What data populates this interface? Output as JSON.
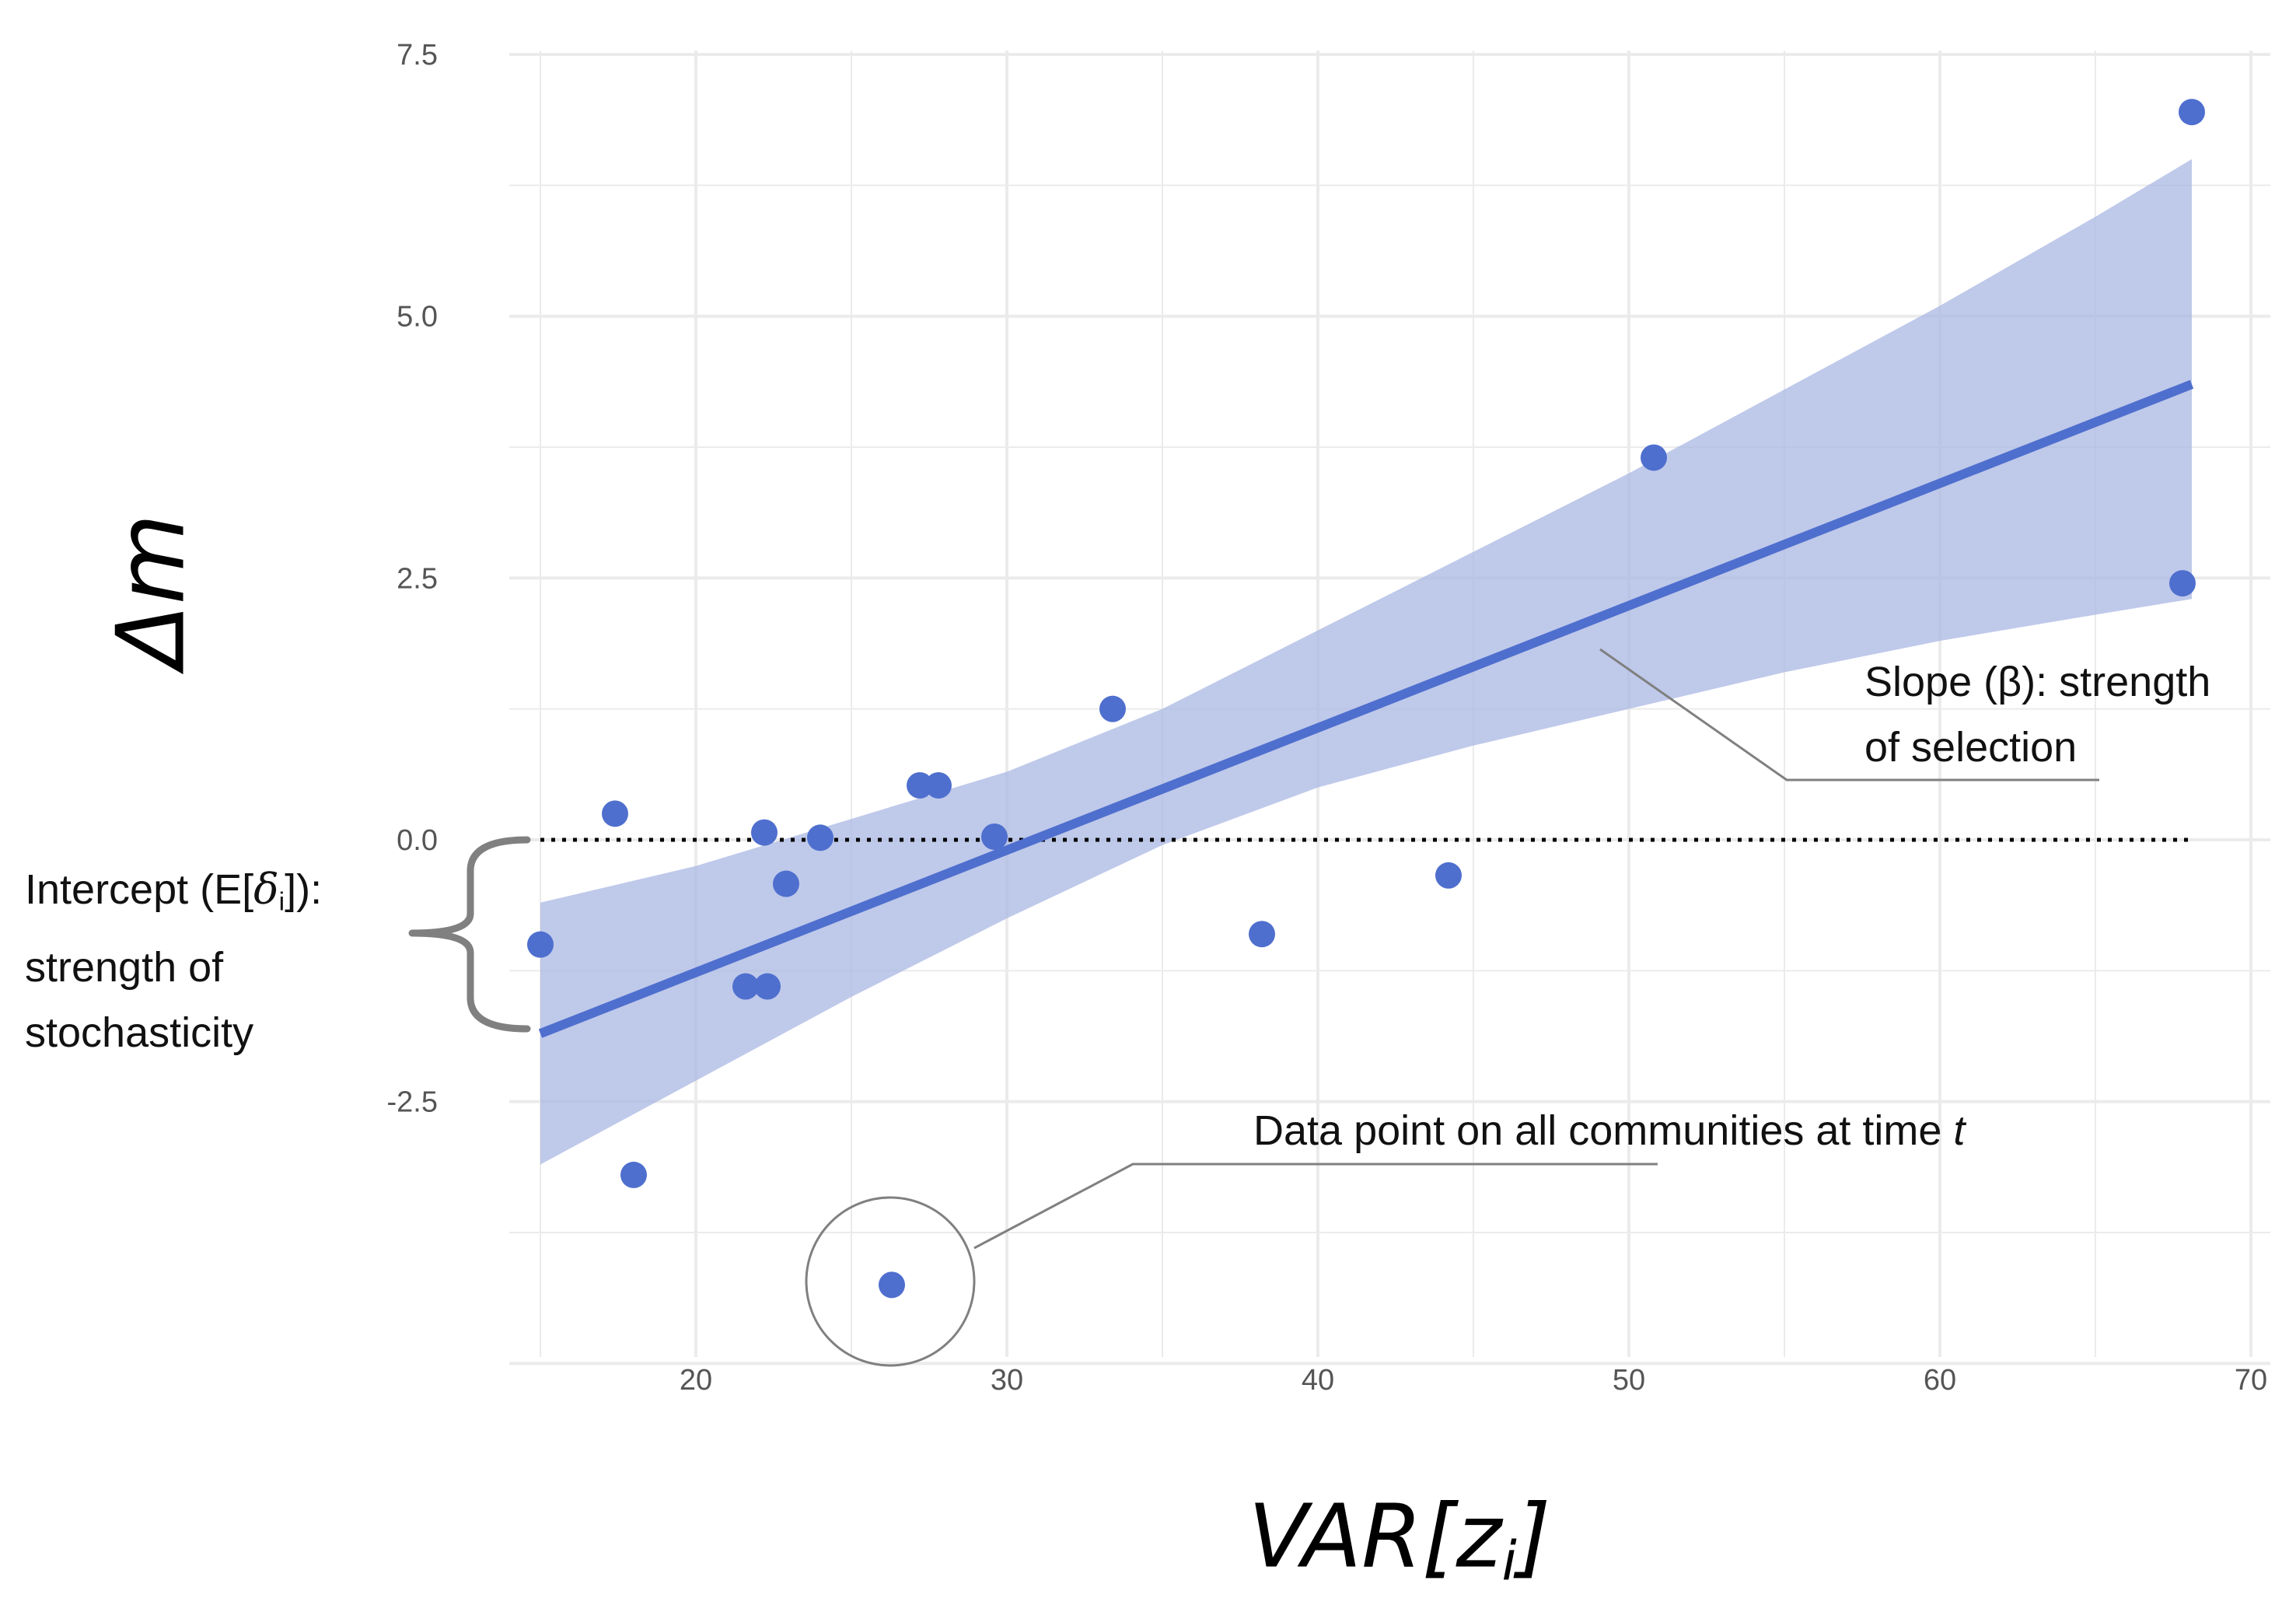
{
  "chart_data": {
    "type": "scatter",
    "xlabel": "VAR[z",
    "xlabel_sub": "i",
    "xlabel_close": "]",
    "ylabel": "Δm",
    "xlim": [
      13.5,
      70.5
    ],
    "ylim": [
      -4.8,
      7.5
    ],
    "x_ticks": [
      "20",
      "30",
      "40",
      "50",
      "60",
      "70"
    ],
    "y_ticks": [
      "7.5",
      "5.0",
      "2.5",
      "0.0",
      "-2.5"
    ],
    "grid": true,
    "points": [
      {
        "x": 15.0,
        "y": -1.0
      },
      {
        "x": 17.4,
        "y": 0.25
      },
      {
        "x": 18.0,
        "y": -3.2
      },
      {
        "x": 21.6,
        "y": -1.4
      },
      {
        "x": 22.2,
        "y": 0.07
      },
      {
        "x": 22.3,
        "y": -1.4
      },
      {
        "x": 22.9,
        "y": -0.42
      },
      {
        "x": 24.0,
        "y": 0.02
      },
      {
        "x": 26.3,
        "y": -4.25
      },
      {
        "x": 27.2,
        "y": 0.52
      },
      {
        "x": 27.8,
        "y": 0.52
      },
      {
        "x": 29.6,
        "y": 0.03
      },
      {
        "x": 33.4,
        "y": 1.25
      },
      {
        "x": 38.2,
        "y": -0.9
      },
      {
        "x": 44.2,
        "y": -0.34
      },
      {
        "x": 50.8,
        "y": 3.65
      },
      {
        "x": 67.8,
        "y": 2.45
      },
      {
        "x": 68.1,
        "y": 6.95
      }
    ],
    "fit_line": {
      "x": [
        15.0,
        68.1
      ],
      "y": [
        -1.85,
        4.35
      ]
    },
    "confidence_band": {
      "x": [
        15.0,
        20.0,
        25.0,
        30.0,
        35.0,
        40.0,
        45.0,
        50.0,
        55.0,
        60.0,
        65.0,
        68.1
      ],
      "lower": [
        -3.1,
        -2.3,
        -1.5,
        -0.75,
        -0.05,
        0.5,
        0.9,
        1.25,
        1.6,
        1.9,
        2.15,
        2.3
      ],
      "upper": [
        -0.6,
        -0.25,
        0.2,
        0.65,
        1.25,
        2.0,
        2.75,
        3.5,
        4.3,
        5.1,
        5.95,
        6.5
      ]
    },
    "zero_line_y": 0.0,
    "colors": {
      "points": "#4f6fce",
      "band": "#a9b7e3",
      "line": "#4f6fce",
      "grid": "#ebebeb"
    }
  },
  "annotations": {
    "slope_line1": "Slope (β): strength",
    "slope_line2": "of selection",
    "intercept_a": "Intercept (E[",
    "intercept_delta": "δ",
    "intercept_sub": "i",
    "intercept_b": "]):",
    "intercept_line2": "strength of",
    "intercept_line3": "stochasticity",
    "datapoint_a": "Data point on all communities at time ",
    "datapoint_t": "t"
  }
}
